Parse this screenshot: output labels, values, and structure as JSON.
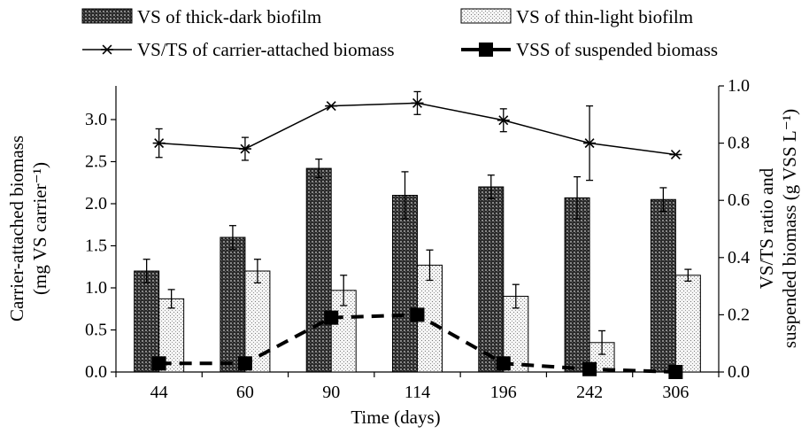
{
  "chart_data": {
    "type": "bar",
    "categories": [
      "44",
      "60",
      "90",
      "114",
      "196",
      "242",
      "306"
    ],
    "xlabel": "Time (days)",
    "ylabel_left": [
      "Carrier-attached biomass",
      "(mg VS carrier⁻¹)"
    ],
    "ylabel_right": [
      "VS/TS ratio and",
      "suspended biomass (g VSS L⁻¹)"
    ],
    "ylim_left": [
      0,
      3.4
    ],
    "ylim_right": [
      0,
      1.0
    ],
    "yticks_left": [
      "0.0",
      "0.5",
      "1.0",
      "1.5",
      "2.0",
      "2.5",
      "3.0"
    ],
    "yticks_right": [
      "0.0",
      "0.2",
      "0.4",
      "0.6",
      "0.8",
      "1.0"
    ],
    "series": [
      {
        "name": "VS of thick-dark biofilm",
        "type": "bar",
        "axis": "left",
        "pattern": "dark-hatch",
        "values": [
          1.2,
          1.6,
          2.42,
          2.1,
          2.2,
          2.07,
          2.05
        ],
        "errors": [
          0.14,
          0.14,
          0.11,
          0.28,
          0.14,
          0.25,
          0.14
        ]
      },
      {
        "name": "VS of thin-light biofilm",
        "type": "bar",
        "axis": "left",
        "pattern": "light-dots",
        "values": [
          0.87,
          1.2,
          0.97,
          1.27,
          0.9,
          0.35,
          1.15
        ],
        "errors": [
          0.11,
          0.14,
          0.18,
          0.18,
          0.14,
          0.14,
          0.07
        ]
      },
      {
        "name": "VS/TS of carrier-attached biomass",
        "type": "line",
        "axis": "right",
        "marker": "asterisk",
        "values": [
          0.8,
          0.78,
          0.93,
          0.94,
          0.88,
          0.8,
          0.76
        ],
        "errors": [
          0.05,
          0.04,
          0.0,
          0.04,
          0.04,
          0.13,
          0.0
        ]
      },
      {
        "name": "VSS of suspended biomass",
        "type": "line",
        "axis": "right",
        "marker": "square",
        "style": "dashed",
        "values": [
          0.03,
          0.03,
          0.19,
          0.2,
          0.03,
          0.01,
          0.0
        ]
      }
    ],
    "grid": false,
    "legend_position": "top"
  }
}
